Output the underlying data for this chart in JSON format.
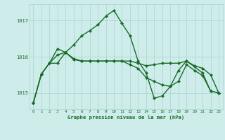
{
  "xlabel": "Graphe pression niveau de la mer (hPa)",
  "background_color": "#ceecea",
  "grid_color": "#aed8d4",
  "line_color": "#1a6b2a",
  "xlim": [
    -0.5,
    23.5
  ],
  "ylim": [
    1014.55,
    1017.45
  ],
  "yticks": [
    1015,
    1016,
    1017
  ],
  "xticks": [
    0,
    1,
    2,
    3,
    4,
    5,
    6,
    7,
    8,
    9,
    10,
    11,
    12,
    13,
    14,
    15,
    16,
    17,
    18,
    19,
    20,
    21,
    22,
    23
  ],
  "series": [
    [
      1014.72,
      1015.52,
      1015.82,
      1016.05,
      1016.12,
      1015.95,
      1015.88,
      1015.88,
      1015.88,
      1015.88,
      1015.88,
      1015.88,
      1015.88,
      1015.82,
      1015.75,
      1015.78,
      1015.82,
      1015.82,
      1015.82,
      1015.88,
      1015.75,
      1015.68,
      1015.5,
      1015.0
    ],
    [
      1014.72,
      1015.52,
      1015.82,
      1016.22,
      1016.12,
      1016.32,
      1016.58,
      1016.72,
      1016.88,
      1017.12,
      1017.28,
      1016.92,
      1016.58,
      1015.88,
      1015.55,
      1014.85,
      1014.92,
      1015.18,
      1015.62,
      1015.88,
      1015.72,
      1015.55,
      1015.05,
      1015.0
    ],
    [
      1014.72,
      1015.52,
      1015.82,
      1015.82,
      1016.12,
      1015.92,
      1015.88,
      1015.88,
      1015.88,
      1015.88,
      1015.88,
      1015.88,
      1015.78,
      1015.68,
      1015.42,
      1015.32,
      1015.22,
      1015.18,
      1015.32,
      1015.78,
      1015.62,
      1015.48,
      1015.05,
      1015.0
    ]
  ]
}
